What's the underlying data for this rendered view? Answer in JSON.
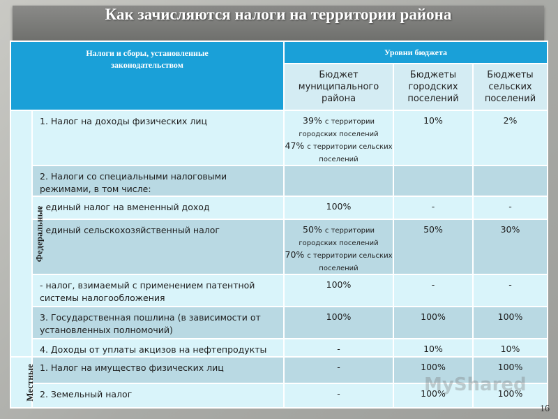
{
  "title": "Как зачисляются налоги на территории района",
  "table": {
    "header": {
      "taxes": "Налоги и сборы, установленные законодательством",
      "levels": "Уровни бюджета",
      "columns": [
        "Бюджет муниципального района",
        "Бюджеты городских поселений",
        "Бюджеты сельских поселений"
      ]
    },
    "groups": [
      {
        "label": "Федеральные",
        "rows": [
          {
            "name": "1. Налог на доходы физических лиц",
            "cells": [
              [
                {
                  "main": "39%",
                  "note": "с территории городских поселений"
                },
                {
                  "main": "47%",
                  "note": "с территории сельских поселений"
                }
              ],
              [
                {
                  "main": "10%"
                }
              ],
              [
                {
                  "main": "2%"
                }
              ]
            ]
          },
          {
            "name": "2. Налоги со специальными налоговыми режимами, в том числе:",
            "cells": [
              [],
              [],
              []
            ]
          },
          {
            "name": "- единый налог на вмененный доход",
            "cells": [
              [
                {
                  "main": "100%"
                }
              ],
              [
                {
                  "main": "-"
                }
              ],
              [
                {
                  "main": "-"
                }
              ]
            ]
          },
          {
            "name": "- единый сельскохозяйственный налог",
            "cells": [
              [
                {
                  "main": "50%",
                  "note": "с территории городских поселений"
                },
                {
                  "main": "70%",
                  "note": "с территории сельских поселений"
                }
              ],
              [
                {
                  "main": "50%"
                }
              ],
              [
                {
                  "main": "30%"
                }
              ]
            ]
          },
          {
            "name": "- налог, взимаемый с применением патентной системы налогообложения",
            "cells": [
              [
                {
                  "main": "100%"
                }
              ],
              [
                {
                  "main": "-"
                }
              ],
              [
                {
                  "main": "-"
                }
              ]
            ]
          },
          {
            "name": "3. Государственная пошлина (в зависимости от установленных полномочий)",
            "cells": [
              [
                {
                  "main": "100%"
                }
              ],
              [
                {
                  "main": "100%"
                }
              ],
              [
                {
                  "main": "100%"
                }
              ]
            ]
          },
          {
            "name": "4. Доходы от уплаты акцизов на нефтепродукты",
            "cells": [
              [
                {
                  "main": "-"
                }
              ],
              [
                {
                  "main": "10%"
                }
              ],
              [
                {
                  "main": "10%"
                }
              ]
            ]
          }
        ]
      },
      {
        "label": "Местные",
        "rows": [
          {
            "name": "1. Налог на имущество физических лиц",
            "cells": [
              [
                {
                  "main": "-"
                }
              ],
              [
                {
                  "main": "100%"
                }
              ],
              [
                {
                  "main": "100%"
                }
              ]
            ]
          },
          {
            "name": "2. Земельный налог",
            "cells": [
              [
                {
                  "main": "-"
                }
              ],
              [
                {
                  "main": "100%"
                }
              ],
              [
                {
                  "main": "100%"
                }
              ]
            ]
          }
        ]
      }
    ]
  },
  "watermark": "MyShared",
  "page_number": "16"
}
